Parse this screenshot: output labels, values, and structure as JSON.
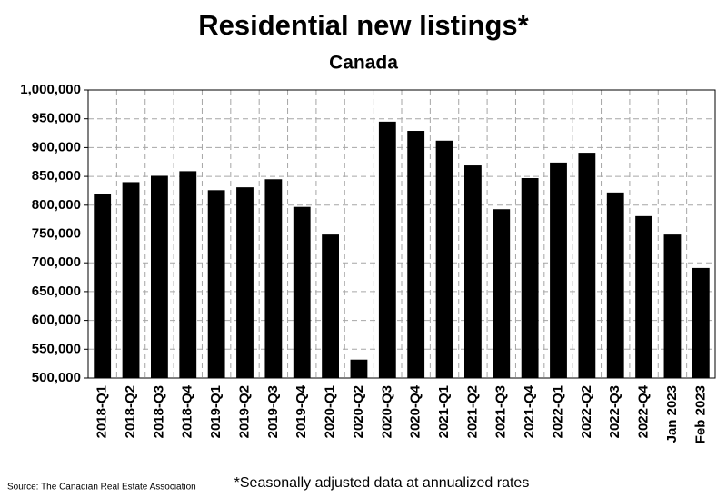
{
  "chart_data": {
    "type": "bar",
    "title": "Residential new listings*",
    "subtitle": "Canada",
    "categories": [
      "2018-Q1",
      "2018-Q2",
      "2018-Q3",
      "2018-Q4",
      "2019-Q1",
      "2019-Q2",
      "2019-Q3",
      "2019-Q4",
      "2020-Q1",
      "2020-Q2",
      "2020-Q3",
      "2020-Q4",
      "2021-Q1",
      "2021-Q2",
      "2021-Q3",
      "2021-Q4",
      "2022-Q1",
      "2022-Q2",
      "2022-Q3",
      "2022-Q4",
      "Jan 2023",
      "Feb 2023"
    ],
    "values": [
      820000,
      840000,
      851000,
      859000,
      826000,
      831000,
      845000,
      797000,
      749000,
      532000,
      945000,
      929000,
      912000,
      869000,
      793000,
      847000,
      874000,
      891000,
      822000,
      781000,
      749000,
      691000
    ],
    "color": "#000000",
    "ylim": [
      500000,
      1000000
    ],
    "yticks": [
      {
        "value": 500000,
        "label": "500,000"
      },
      {
        "value": 550000,
        "label": "550,000"
      },
      {
        "value": 600000,
        "label": "600,000"
      },
      {
        "value": 650000,
        "label": "650,000"
      },
      {
        "value": 700000,
        "label": "700,000"
      },
      {
        "value": 750000,
        "label": "750,000"
      },
      {
        "value": 800000,
        "label": "800,000"
      },
      {
        "value": 850000,
        "label": "850,000"
      },
      {
        "value": 900000,
        "label": "900,000"
      },
      {
        "value": 950000,
        "label": "950,000"
      },
      {
        "value": 1000000,
        "label": "1,000,000"
      }
    ],
    "grid": true,
    "source": "Source: The Canadian Real Estate Association",
    "footnote": "*Seasonally adjusted data at annualized rates"
  }
}
